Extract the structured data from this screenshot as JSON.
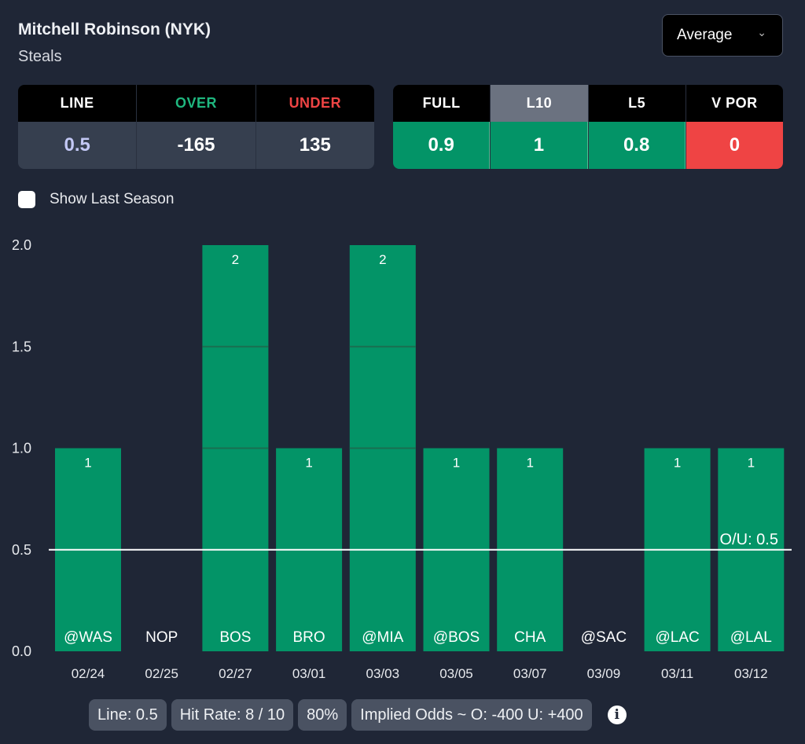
{
  "header": {
    "player": "Mitchell Robinson (NYK)",
    "stat": "Steals",
    "dropdown": "Average"
  },
  "odds": {
    "headers": [
      "LINE",
      "OVER",
      "UNDER"
    ],
    "values": [
      "0.5",
      "-165",
      "135"
    ],
    "colors": [
      "#ffffff",
      "#1fb77f",
      "#ef4444"
    ],
    "line_value_color": "#c3c8f5"
  },
  "splits": {
    "headers": [
      "FULL",
      "L10",
      "L5",
      "V POR"
    ],
    "values": [
      "0.9",
      "1",
      "0.8",
      "0"
    ],
    "selected": "L10",
    "value_colors": [
      "#039467",
      "#039467",
      "#039467",
      "#ef4444"
    ]
  },
  "checkbox": {
    "label": "Show Last Season",
    "checked": false
  },
  "chart_data": {
    "type": "bar",
    "categories": [
      "02/24",
      "02/25",
      "02/27",
      "03/01",
      "03/03",
      "03/05",
      "03/07",
      "03/09",
      "03/11",
      "03/12"
    ],
    "opponents": [
      "@WAS",
      "NOP",
      "BOS",
      "BRO",
      "@MIA",
      "@BOS",
      "CHA",
      "@SAC",
      "@LAC",
      "@LAL"
    ],
    "values": [
      1,
      0,
      2,
      1,
      2,
      1,
      1,
      0,
      1,
      1
    ],
    "ylim": [
      0,
      2
    ],
    "yticks": [
      "0.0",
      "0.5",
      "1.0",
      "1.5",
      "2.0"
    ],
    "reference_line": {
      "value": 0.5,
      "label": "O/U: 0.5"
    },
    "bar_color": "#039467"
  },
  "footer": {
    "pills": [
      "Line: 0.5",
      "Hit Rate: 8 / 10",
      "80%",
      "Implied Odds ~ O: -400 U: +400"
    ],
    "info_icon": "info-icon"
  }
}
